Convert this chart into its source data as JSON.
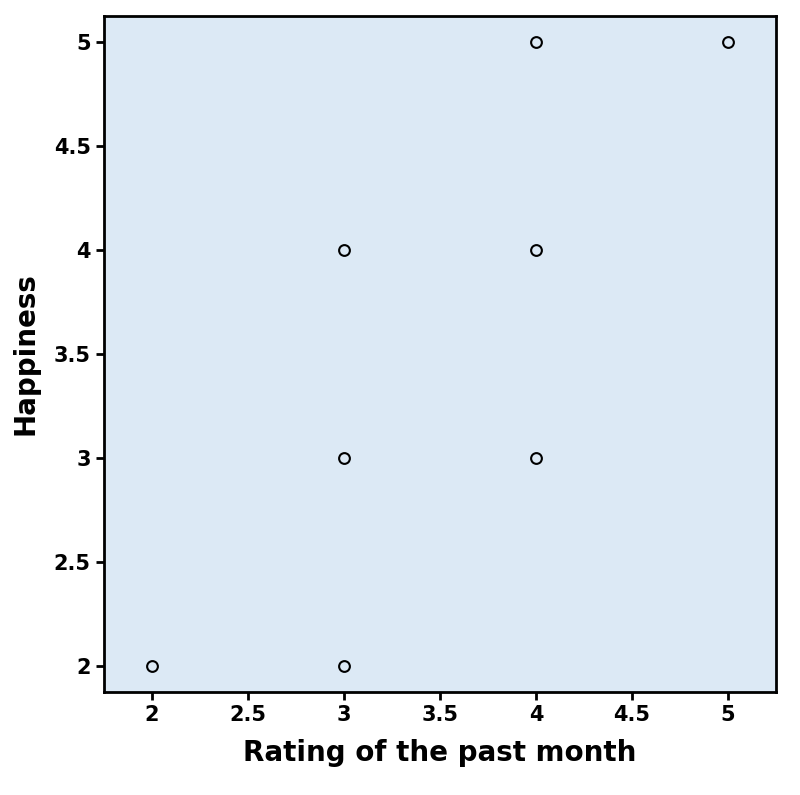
{
  "x": [
    2,
    3,
    3,
    3,
    4,
    4,
    4,
    5
  ],
  "y": [
    2,
    2,
    3,
    4,
    3,
    4,
    5,
    5
  ],
  "xlabel": "Rating of the past month",
  "ylabel": "Happiness",
  "xlim": [
    1.75,
    5.25
  ],
  "ylim": [
    1.875,
    5.125
  ],
  "xticks": [
    2,
    2.5,
    3,
    3.5,
    4,
    4.5,
    5
  ],
  "yticks": [
    2,
    2.5,
    3,
    3.5,
    4,
    4.5,
    5
  ],
  "background_color": "#dce9f5",
  "fig_background_color": "#ffffff",
  "marker": "o",
  "marker_facecolor": "#dce9f5",
  "marker_edgecolor": "#000000",
  "marker_size": 60,
  "marker_linewidth": 1.5,
  "xlabel_fontsize": 20,
  "ylabel_fontsize": 20,
  "tick_fontsize": 15,
  "xlabel_fontweight": "bold",
  "ylabel_fontweight": "bold",
  "tick_fontweight": "bold",
  "spine_linewidth": 2.0
}
